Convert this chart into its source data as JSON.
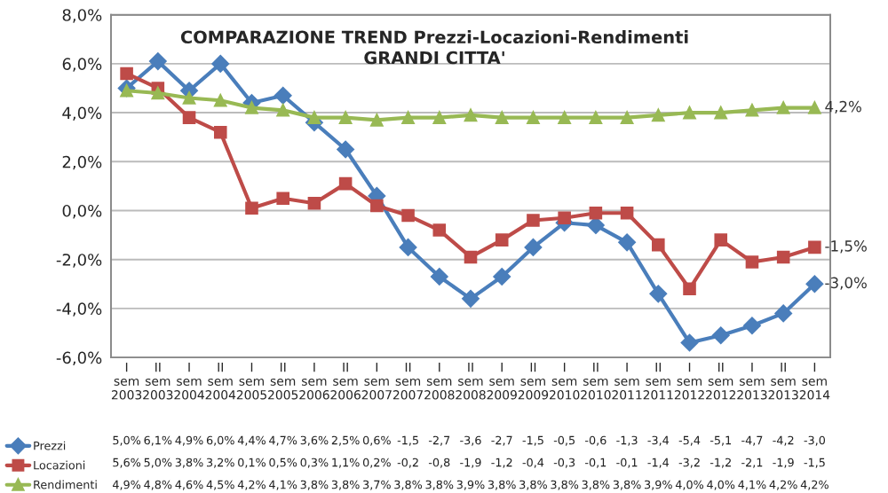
{
  "chart_data": {
    "type": "line",
    "title": "COMPARAZIONE TREND Prezzi-Locazioni-Rendimenti\nGRANDI CITTA'",
    "categories": [
      "I sem 2003",
      "II sem 2003",
      "I sem 2004",
      "II sem 2004",
      "I sem 2005",
      "II sem 2005",
      "I sem 2006",
      "II sem 2006",
      "I sem 2007",
      "II sem 2007",
      "I sem 2008",
      "II sem 2008",
      "I sem 2009",
      "II sem 2009",
      "I sem 2010",
      "II sem 2010",
      "I sem 2011",
      "II sem 2011",
      "I sem 2012",
      "II sem 2012",
      "I sem 2013",
      "II sem 2013",
      "I sem 2014"
    ],
    "series": [
      {
        "name": "Prezzi",
        "color": "#4a7ebb",
        "marker": "diamond",
        "values": [
          5.0,
          6.1,
          4.9,
          6.0,
          4.4,
          4.7,
          3.6,
          2.5,
          0.6,
          -1.5,
          -2.7,
          -3.6,
          -2.7,
          -1.5,
          -0.5,
          -0.6,
          -1.3,
          -3.4,
          -5.4,
          -5.1,
          -4.7,
          -4.2,
          -3.0
        ],
        "value_labels": [
          "5,0%",
          "6,1%",
          "4,9%",
          "6,0%",
          "4,4%",
          "4,7%",
          "3,6%",
          "2,5%",
          "0,6%",
          "-1,5",
          "-2,7",
          "-3,6",
          "-2,7",
          "-1,5",
          "-0,5",
          "-0,6",
          "-1,3",
          "-3,4",
          "-5,4",
          "-5,1",
          "-4,7",
          "-4,2",
          "-3,0"
        ]
      },
      {
        "name": "Locazioni",
        "color": "#be4b48",
        "marker": "square",
        "values": [
          5.6,
          5.0,
          3.8,
          3.2,
          0.1,
          0.5,
          0.3,
          1.1,
          0.2,
          -0.2,
          -0.8,
          -1.9,
          -1.2,
          -0.4,
          -0.3,
          -0.1,
          -0.1,
          -1.4,
          -3.2,
          -1.2,
          -2.1,
          -1.9,
          -1.5
        ],
        "value_labels": [
          "5,6%",
          "5,0%",
          "3,8%",
          "3,2%",
          "0,1%",
          "0,5%",
          "0,3%",
          "1,1%",
          "0,2%",
          "-0,2",
          "-0,8",
          "-1,9",
          "-1,2",
          "-0,4",
          "-0,3",
          "-0,1",
          "-0,1",
          "-1,4",
          "-3,2",
          "-1,2",
          "-2,1",
          "-1,9",
          "-1,5"
        ]
      },
      {
        "name": "Rendimenti",
        "color": "#98b954",
        "marker": "triangle",
        "values": [
          4.9,
          4.8,
          4.6,
          4.5,
          4.2,
          4.1,
          3.8,
          3.8,
          3.7,
          3.8,
          3.8,
          3.9,
          3.8,
          3.8,
          3.8,
          3.8,
          3.8,
          3.9,
          4.0,
          4.0,
          4.1,
          4.2,
          4.2
        ],
        "value_labels": [
          "4,9%",
          "4,8%",
          "4,6%",
          "4,5%",
          "4,2%",
          "4,1%",
          "3,8%",
          "3,8%",
          "3,7%",
          "3,8%",
          "3,8%",
          "3,9%",
          "3,8%",
          "3,8%",
          "3,8%",
          "3,8%",
          "3,8%",
          "3,9%",
          "4,0%",
          "4,0%",
          "4,1%",
          "4,2%",
          "4,2%"
        ]
      }
    ],
    "ylim": [
      -6,
      8
    ],
    "yticks": [
      {
        "value": -6,
        "label": "-6,0%"
      },
      {
        "value": -4,
        "label": "-4,0%"
      },
      {
        "value": -2,
        "label": "-2,0%"
      },
      {
        "value": 0,
        "label": "0,0%"
      },
      {
        "value": 2,
        "label": "2,0%"
      },
      {
        "value": 4,
        "label": "4,0%"
      },
      {
        "value": 6,
        "label": "6,0%"
      },
      {
        "value": 8,
        "label": "8,0%"
      }
    ],
    "grid": "y",
    "legend": "bottom left",
    "annotations": [
      {
        "text": "4,2%",
        "x": "I sem 2014",
        "y": 4.2
      },
      {
        "text": "-1,5%",
        "x": "I sem 2014",
        "y": -1.5
      },
      {
        "text": "-3,0%",
        "x": "I sem 2014",
        "y": -3.0
      }
    ]
  }
}
